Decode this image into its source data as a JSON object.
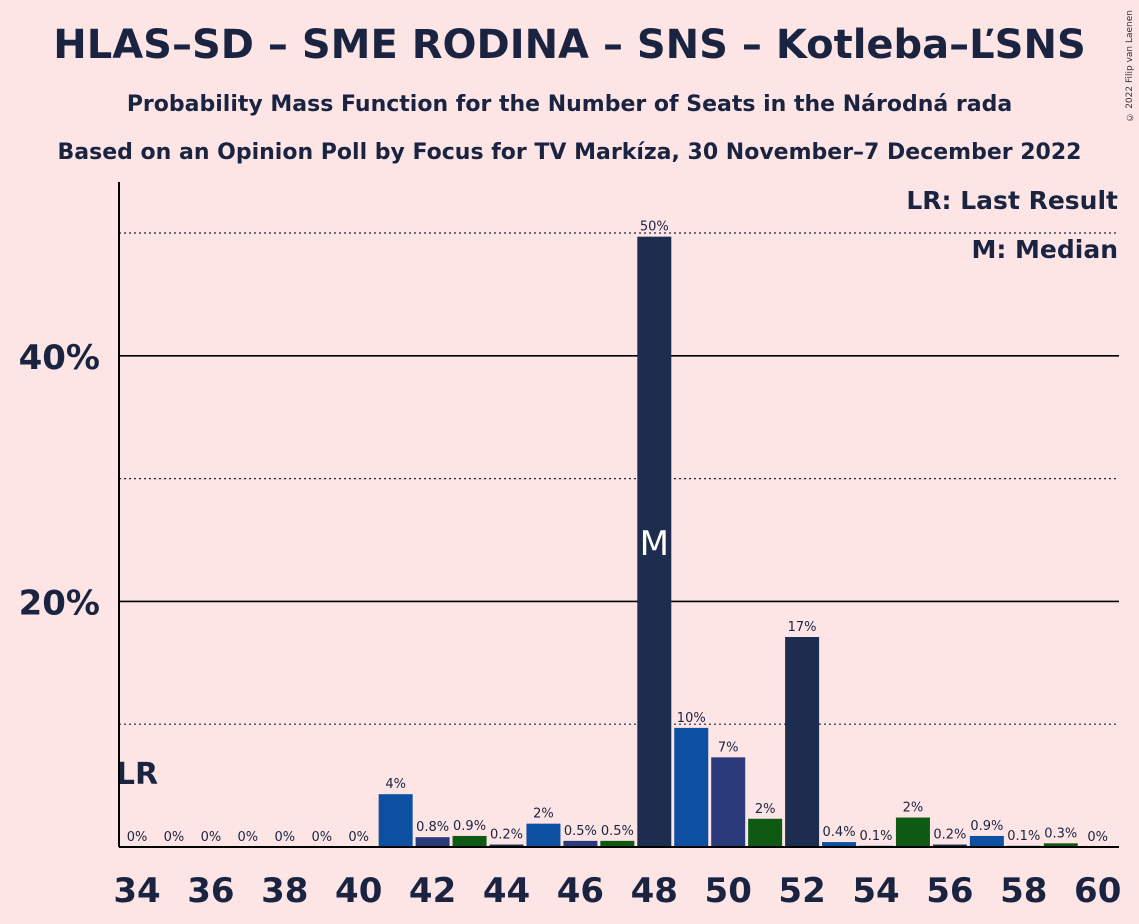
{
  "title": "HLAS–SD – SME RODINA – SNS – Kotleba–ĽSNS",
  "subtitle1": "Probability Mass Function for the Number of Seats in the Národná rada",
  "subtitle2": "Based on an Opinion Poll by Focus for TV Markíza, 30 November–7 December 2022",
  "copyright": "© 2022 Filip van Laenen",
  "legend": {
    "last_result": "LR: Last Result",
    "median": "M: Median"
  },
  "markers": {
    "last_result_label": "LR",
    "last_result_seat": 34,
    "median_label": "M",
    "median_seat": 48
  },
  "colors": {
    "background": "#fde5e6",
    "dark_navy": "#1c2d4f",
    "blue": "#0d4fa0",
    "indigo": "#2b3a7a",
    "green": "#0e5a12",
    "text": "#1a2440"
  },
  "chart_data": {
    "type": "bar",
    "xlabel": "",
    "ylabel": "",
    "ylim": [
      0,
      54
    ],
    "yticks": [
      {
        "value": 20,
        "label": "20%"
      },
      {
        "value": 40,
        "label": "40%"
      }
    ],
    "dotted_lines": [
      10,
      30,
      50
    ],
    "xticks": [
      34,
      36,
      38,
      40,
      42,
      44,
      46,
      48,
      50,
      52,
      54,
      56,
      58,
      60
    ],
    "bars": [
      {
        "seats": 34,
        "value": 0,
        "label": "0%",
        "color": "blue"
      },
      {
        "seats": 35,
        "value": 0,
        "label": "0%",
        "color": "blue"
      },
      {
        "seats": 36,
        "value": 0,
        "label": "0%",
        "color": "blue"
      },
      {
        "seats": 37,
        "value": 0,
        "label": "0%",
        "color": "blue"
      },
      {
        "seats": 38,
        "value": 0,
        "label": "0%",
        "color": "blue"
      },
      {
        "seats": 39,
        "value": 0,
        "label": "0%",
        "color": "blue"
      },
      {
        "seats": 40,
        "value": 0,
        "label": "0%",
        "color": "blue"
      },
      {
        "seats": 41,
        "value": 4.3,
        "label": "4%",
        "color": "blue"
      },
      {
        "seats": 42,
        "value": 0.8,
        "label": "0.8%",
        "color": "indigo"
      },
      {
        "seats": 43,
        "value": 0.9,
        "label": "0.9%",
        "color": "green"
      },
      {
        "seats": 44,
        "value": 0.2,
        "label": "0.2%",
        "color": "dark_navy"
      },
      {
        "seats": 45,
        "value": 1.9,
        "label": "2%",
        "color": "blue"
      },
      {
        "seats": 46,
        "value": 0.5,
        "label": "0.5%",
        "color": "indigo"
      },
      {
        "seats": 47,
        "value": 0.5,
        "label": "0.5%",
        "color": "green"
      },
      {
        "seats": 48,
        "value": 49.7,
        "label": "50%",
        "color": "dark_navy"
      },
      {
        "seats": 49,
        "value": 9.7,
        "label": "10%",
        "color": "blue"
      },
      {
        "seats": 50,
        "value": 7.3,
        "label": "7%",
        "color": "indigo"
      },
      {
        "seats": 51,
        "value": 2.3,
        "label": "2%",
        "color": "green"
      },
      {
        "seats": 52,
        "value": 17.1,
        "label": "17%",
        "color": "dark_navy"
      },
      {
        "seats": 53,
        "value": 0.4,
        "label": "0.4%",
        "color": "blue"
      },
      {
        "seats": 54,
        "value": 0.1,
        "label": "0.1%",
        "color": "indigo"
      },
      {
        "seats": 55,
        "value": 2.4,
        "label": "2%",
        "color": "green"
      },
      {
        "seats": 56,
        "value": 0.2,
        "label": "0.2%",
        "color": "dark_navy"
      },
      {
        "seats": 57,
        "value": 0.9,
        "label": "0.9%",
        "color": "blue"
      },
      {
        "seats": 58,
        "value": 0.1,
        "label": "0.1%",
        "color": "indigo"
      },
      {
        "seats": 59,
        "value": 0.3,
        "label": "0.3%",
        "color": "green"
      },
      {
        "seats": 60,
        "value": 0,
        "label": "0%",
        "color": "dark_navy"
      }
    ]
  }
}
